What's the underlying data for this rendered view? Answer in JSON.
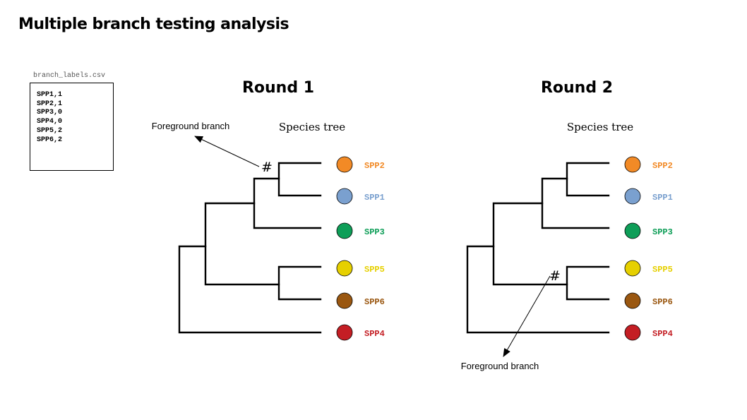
{
  "title": "Multiple branch testing analysis",
  "csv": {
    "filename": "branch_labels.csv",
    "lines": [
      "SPP1,1",
      "SPP2,1",
      "SPP3,0",
      "SPP4,0",
      "SPP5,2",
      "SPP6,2"
    ]
  },
  "species_colors": {
    "SPP1": "#7aa0cf",
    "SPP2": "#f28a26",
    "SPP3": "#0e9e58",
    "SPP4": "#c41e24",
    "SPP5": "#e6d000",
    "SPP6": "#9a5710"
  },
  "tree_tips": [
    "SPP2",
    "SPP1",
    "SPP3",
    "SPP5",
    "SPP6",
    "SPP4"
  ],
  "rounds": [
    {
      "title": "Round 1",
      "tree_label": "Species tree",
      "foreground_label": "Foreground branch",
      "marker": "#"
    },
    {
      "title": "Round 2",
      "tree_label": "Species tree",
      "foreground_label": "Foreground branch",
      "marker": "#"
    }
  ]
}
